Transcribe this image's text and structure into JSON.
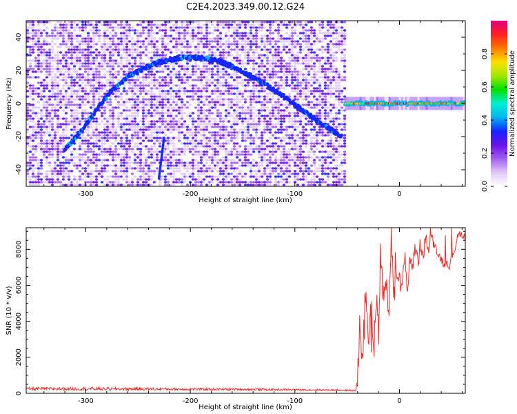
{
  "title": "C2E4.2023.349.00.12.G24",
  "chart_data": [
    {
      "type": "heatmap",
      "xlabel": "Height of straight line (km)",
      "ylabel": "Frequency (Hz)",
      "xlim": [
        -357,
        63
      ],
      "ylim": [
        -50,
        50
      ],
      "x_ticks": [
        -300,
        -200,
        -100,
        0
      ],
      "x_tick_labels": [
        "-300",
        "-200",
        "-100",
        "0"
      ],
      "y_ticks": [
        -40,
        -20,
        0,
        20,
        40
      ],
      "y_tick_labels": [
        "-40",
        "-20",
        "0",
        "20",
        "40"
      ],
      "noise_x_range": [
        -357,
        -52
      ],
      "arc_track": {
        "x": [
          -320,
          -305,
          -290,
          -275,
          -260,
          -245,
          -230,
          -215,
          -200,
          -185,
          -170,
          -155,
          -140,
          -125,
          -110,
          -95,
          -80,
          -65,
          -55
        ],
        "y": [
          -28,
          -17,
          -4,
          8,
          16,
          21,
          25,
          27,
          28,
          27,
          25,
          21,
          16,
          10,
          4,
          -3,
          -10,
          -16,
          -20
        ]
      },
      "vertical_streak": {
        "x": [
          -230,
          -225
        ],
        "y": [
          -45,
          -20
        ]
      },
      "carrier": {
        "x_range": [
          -52,
          63
        ],
        "y": 0,
        "amplitude_min": 0.45,
        "amplitude_max": 1.0
      },
      "colorbar": {
        "label": "Normalized spectral amplitude",
        "range": [
          0,
          1
        ],
        "ticks": [
          0.0,
          0.2,
          0.4,
          0.6,
          0.8
        ],
        "tick_labels": [
          "0.0",
          "0.2",
          "0.4",
          "0.6",
          "0.8"
        ],
        "colors": [
          "#ffffff",
          "#e0c8f8",
          "#a060f0",
          "#6a10e8",
          "#1428ff",
          "#00b4f0",
          "#00f0d0",
          "#00e000",
          "#a0e800",
          "#ffe000",
          "#ff7800",
          "#ff2020",
          "#e00080"
        ]
      }
    },
    {
      "type": "line",
      "xlabel": "Height of straight line (km)",
      "ylabel": "SNR (10 * v/v)",
      "xlim": [
        -357,
        63
      ],
      "ylim": [
        0,
        9200
      ],
      "x_ticks": [
        -300,
        -200,
        -100,
        0
      ],
      "x_tick_labels": [
        "-300",
        "-200",
        "-100",
        "0"
      ],
      "y_ticks": [
        0,
        2000,
        4000,
        6000,
        8000
      ],
      "y_tick_labels": [
        "0",
        "2000",
        "4000",
        "6000",
        "8000"
      ],
      "line_color": "#ee2a2a",
      "series": [
        {
          "x": [
            -357,
            -300,
            -250,
            -200,
            -150,
            -100,
            -60,
            -42,
            -40,
            -38,
            -35,
            -32,
            -30,
            -28,
            -25,
            -22,
            -20,
            -18,
            -15,
            -12,
            -10,
            -8,
            -5,
            -3,
            0,
            3,
            5,
            8,
            10,
            13,
            15,
            18,
            20,
            23,
            25,
            28,
            30,
            33,
            35,
            38,
            40,
            43,
            45,
            48,
            50,
            53,
            55,
            58,
            60,
            63
          ],
          "y": [
            250,
            250,
            240,
            230,
            220,
            200,
            180,
            150,
            900,
            3500,
            1800,
            6600,
            2500,
            4000,
            2200,
            5000,
            3000,
            8000,
            4500,
            6800,
            3500,
            9100,
            5200,
            7300,
            6100,
            5800,
            7800,
            5600,
            7600,
            7000,
            8200,
            7300,
            8300,
            7600,
            8800,
            7800,
            9000,
            8200,
            8100,
            7600,
            7500,
            7100,
            7400,
            7000,
            7600,
            8000,
            8600,
            8900,
            8800,
            8700
          ],
          "noise": [
            90,
            90,
            80,
            70,
            60,
            50,
            40,
            40,
            600,
            1200,
            1200,
            1200,
            1200,
            1200,
            1100,
            1100,
            1100,
            1000,
            1000,
            900,
            900,
            800,
            800,
            700,
            700,
            600,
            600,
            500,
            500,
            450,
            450,
            400,
            400,
            350,
            350,
            300,
            300,
            250,
            250,
            250,
            250,
            220,
            220,
            200,
            200,
            200,
            200,
            200,
            200,
            200
          ]
        }
      ]
    }
  ]
}
